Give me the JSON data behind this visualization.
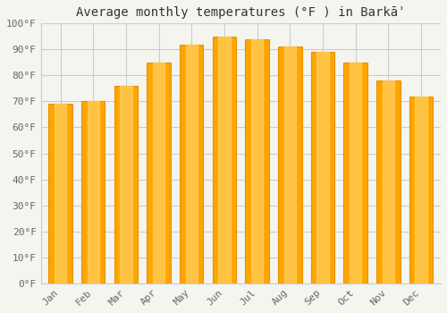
{
  "title": "Average monthly temperatures (°F ) in Barkāʾ",
  "months": [
    "Jan",
    "Feb",
    "Mar",
    "Apr",
    "May",
    "Jun",
    "Jul",
    "Aug",
    "Sep",
    "Oct",
    "Nov",
    "Dec"
  ],
  "values": [
    69,
    70,
    76,
    85,
    92,
    95,
    94,
    91,
    89,
    85,
    78,
    72
  ],
  "bar_color_main": "#FFA500",
  "bar_color_light": "#FFD060",
  "bar_color_dark": "#E89000",
  "ylim": [
    0,
    100
  ],
  "yticks": [
    0,
    10,
    20,
    30,
    40,
    50,
    60,
    70,
    80,
    90,
    100
  ],
  "ytick_labels": [
    "0°F",
    "10°F",
    "20°F",
    "30°F",
    "40°F",
    "50°F",
    "60°F",
    "70°F",
    "80°F",
    "90°F",
    "100°F"
  ],
  "background_color": "#f5f5f0",
  "grid_color": "#cccccc",
  "title_fontsize": 10,
  "tick_fontsize": 8,
  "bar_width": 0.72
}
